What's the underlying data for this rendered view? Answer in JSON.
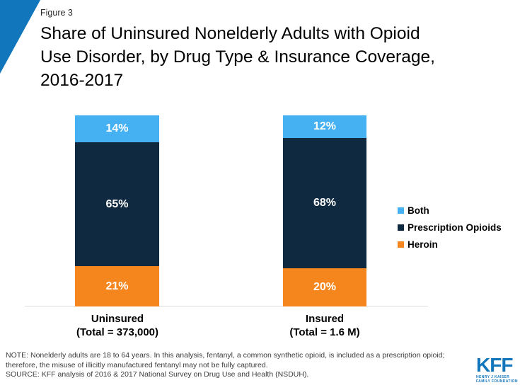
{
  "figure_label": "Figure 3",
  "title_lines": [
    "Share of Uninsured Nonelderly Adults with Opioid",
    "Use Disorder, by Drug Type & Insurance Coverage,",
    "2016-2017"
  ],
  "colors": {
    "kff_blue": "#1276BC",
    "axis_line": "#DBDBDB"
  },
  "chart_data": {
    "type": "bar",
    "stacked": true,
    "units": "percent share of adults with opioid use disorder",
    "categories": [
      "Uninsured",
      "Insured"
    ],
    "category_sublabels": [
      "(Total = 373,000)",
      "(Total = 1.6 M)"
    ],
    "series": [
      {
        "name": "Both",
        "color": "#45B0F2",
        "values": [
          14,
          12
        ]
      },
      {
        "name": "Prescription Opioids",
        "color": "#0E2940",
        "values": [
          65,
          68
        ]
      },
      {
        "name": "Heroin",
        "color": "#F5861E",
        "values": [
          21,
          20
        ]
      }
    ],
    "value_label_suffix": "%",
    "legend_position": "right",
    "ylim": [
      0,
      100
    ],
    "grid": false
  },
  "notes": {
    "note": "NOTE: Nonelderly adults are 18 to 64 years. In this analysis, fentanyl, a common synthetic opioid, is included as a prescription opioid; therefore, the misuse of illicitly manufactured fentanyl may not be fully captured.",
    "source": "SOURCE: KFF analysis of 2016 & 2017 National Survey on Drug Use and Health (NSDUH)."
  },
  "logo": {
    "text": "KFF",
    "tagline_line1": "HENRY J KAISER",
    "tagline_line2": "FAMILY FOUNDATION"
  }
}
